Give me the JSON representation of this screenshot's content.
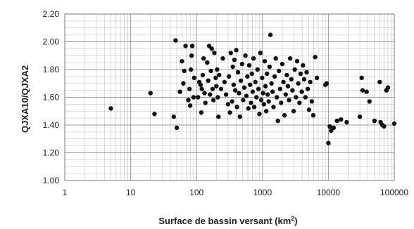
{
  "chart_data": {
    "type": "scatter",
    "title": "",
    "xlabel": "Surface de bassin versant (km",
    "xlabel_sup": "2",
    "xlabel_close": ")",
    "ylabel": "QJXA10/QJXA2",
    "xscale": "log",
    "xlim": [
      1,
      100000
    ],
    "ylim": [
      1.0,
      2.2
    ],
    "x_ticks": [
      1,
      10,
      100,
      1000,
      10000,
      100000
    ],
    "x_tick_labels": [
      "1",
      "10",
      "100",
      "1000",
      "10000",
      "100000"
    ],
    "y_ticks": [
      1.0,
      1.2,
      1.4,
      1.6,
      1.8,
      2.0,
      2.2
    ],
    "y_tick_labels": [
      "1.00",
      "1.20",
      "1.40",
      "1.60",
      "1.80",
      "2.00",
      "2.20"
    ],
    "grid": true,
    "marker_color": "#111111",
    "grid_color": "#bdbdbd",
    "series": [
      {
        "points": [
          [
            5,
            1.52
          ],
          [
            20,
            1.63
          ],
          [
            23,
            1.48
          ],
          [
            45,
            1.46
          ],
          [
            48,
            2.01
          ],
          [
            50,
            1.38
          ],
          [
            56,
            1.64
          ],
          [
            60,
            1.86
          ],
          [
            63,
            1.7
          ],
          [
            65,
            1.79
          ],
          [
            68,
            1.97
          ],
          [
            75,
            1.58
          ],
          [
            78,
            1.66
          ],
          [
            80,
            1.54
          ],
          [
            82,
            1.8
          ],
          [
            84,
            1.9
          ],
          [
            86,
            1.97
          ],
          [
            90,
            1.6
          ],
          [
            92,
            1.74
          ],
          [
            105,
            1.6
          ],
          [
            110,
            1.71
          ],
          [
            115,
            1.69
          ],
          [
            118,
            1.49
          ],
          [
            120,
            1.66
          ],
          [
            124,
            1.76
          ],
          [
            128,
            1.88
          ],
          [
            132,
            1.63
          ],
          [
            136,
            1.56
          ],
          [
            145,
            1.85
          ],
          [
            150,
            1.72
          ],
          [
            155,
            1.97
          ],
          [
            160,
            1.62
          ],
          [
            165,
            1.79
          ],
          [
            170,
            1.95
          ],
          [
            175,
            1.66
          ],
          [
            180,
            1.58
          ],
          [
            186,
            1.92
          ],
          [
            195,
            1.74
          ],
          [
            200,
            1.68
          ],
          [
            205,
            1.8
          ],
          [
            210,
            1.6
          ],
          [
            215,
            1.46
          ],
          [
            220,
            1.76
          ],
          [
            235,
            1.66
          ],
          [
            250,
            1.88
          ],
          [
            265,
            1.71
          ],
          [
            280,
            1.62
          ],
          [
            300,
            1.55
          ],
          [
            310,
            1.75
          ],
          [
            320,
            1.49
          ],
          [
            330,
            1.92
          ],
          [
            345,
            1.57
          ],
          [
            355,
            1.82
          ],
          [
            365,
            1.69
          ],
          [
            375,
            1.87
          ],
          [
            385,
            1.65
          ],
          [
            400,
            1.94
          ],
          [
            410,
            1.53
          ],
          [
            425,
            1.78
          ],
          [
            440,
            1.63
          ],
          [
            455,
            1.46
          ],
          [
            470,
            1.72
          ],
          [
            490,
            1.84
          ],
          [
            510,
            1.58
          ],
          [
            530,
            1.67
          ],
          [
            550,
            1.9
          ],
          [
            570,
            1.61
          ],
          [
            590,
            1.75
          ],
          [
            610,
            1.52
          ],
          [
            630,
            1.83
          ],
          [
            650,
            1.69
          ],
          [
            670,
            1.56
          ],
          [
            690,
            1.77
          ],
          [
            710,
            1.64
          ],
          [
            730,
            1.88
          ],
          [
            750,
            1.53
          ],
          [
            780,
            1.71
          ],
          [
            810,
            1.6
          ],
          [
            840,
            1.8
          ],
          [
            870,
            1.66
          ],
          [
            900,
            1.48
          ],
          [
            930,
            1.92
          ],
          [
            960,
            1.58
          ],
          [
            990,
            1.74
          ],
          [
            1020,
            1.63
          ],
          [
            1050,
            1.55
          ],
          [
            1080,
            1.86
          ],
          [
            1110,
            1.68
          ],
          [
            1140,
            1.5
          ],
          [
            1170,
            1.77
          ],
          [
            1200,
            1.62
          ],
          [
            1240,
            1.57
          ],
          [
            1280,
            1.82
          ],
          [
            1320,
            2.05
          ],
          [
            1370,
            1.7
          ],
          [
            1420,
            1.64
          ],
          [
            1470,
            1.53
          ],
          [
            1530,
            1.75
          ],
          [
            1590,
            1.88
          ],
          [
            1650,
            1.6
          ],
          [
            1710,
            1.43
          ],
          [
            1780,
            1.79
          ],
          [
            1850,
            1.66
          ],
          [
            1920,
            1.56
          ],
          [
            2000,
            1.84
          ],
          [
            2080,
            1.71
          ],
          [
            2160,
            1.47
          ],
          [
            2250,
            1.62
          ],
          [
            2340,
            1.76
          ],
          [
            2430,
            1.68
          ],
          [
            2530,
            1.58
          ],
          [
            2630,
            1.88
          ],
          [
            2740,
            1.73
          ],
          [
            2850,
            1.65
          ],
          [
            2970,
            1.5
          ],
          [
            3090,
            1.8
          ],
          [
            3220,
            1.6
          ],
          [
            3350,
            1.86
          ],
          [
            3490,
            1.7
          ],
          [
            3640,
            1.56
          ],
          [
            3790,
            1.77
          ],
          [
            3950,
            1.64
          ],
          [
            4120,
            1.83
          ],
          [
            4300,
            1.73
          ],
          [
            4480,
            1.6
          ],
          [
            4670,
            1.78
          ],
          [
            4870,
            1.66
          ],
          [
            5080,
            1.51
          ],
          [
            5300,
            1.71
          ],
          [
            5600,
            1.57
          ],
          [
            5900,
            1.47
          ],
          [
            6300,
            1.89
          ],
          [
            6700,
            1.74
          ],
          [
            9000,
            1.69
          ],
          [
            9400,
            1.7
          ],
          [
            10000,
            1.27
          ],
          [
            10500,
            1.39
          ],
          [
            11000,
            1.36
          ],
          [
            12000,
            1.38
          ],
          [
            13500,
            1.43
          ],
          [
            15500,
            1.44
          ],
          [
            19000,
            1.42
          ],
          [
            30000,
            1.46
          ],
          [
            32000,
            1.74
          ],
          [
            33000,
            1.65
          ],
          [
            38000,
            1.64
          ],
          [
            42000,
            1.57
          ],
          [
            50000,
            1.43
          ],
          [
            60000,
            1.71
          ],
          [
            62000,
            1.42
          ],
          [
            66000,
            1.4
          ],
          [
            70000,
            1.39
          ],
          [
            76000,
            1.65
          ],
          [
            80000,
            1.67
          ],
          [
            100000,
            1.41
          ]
        ]
      }
    ]
  }
}
